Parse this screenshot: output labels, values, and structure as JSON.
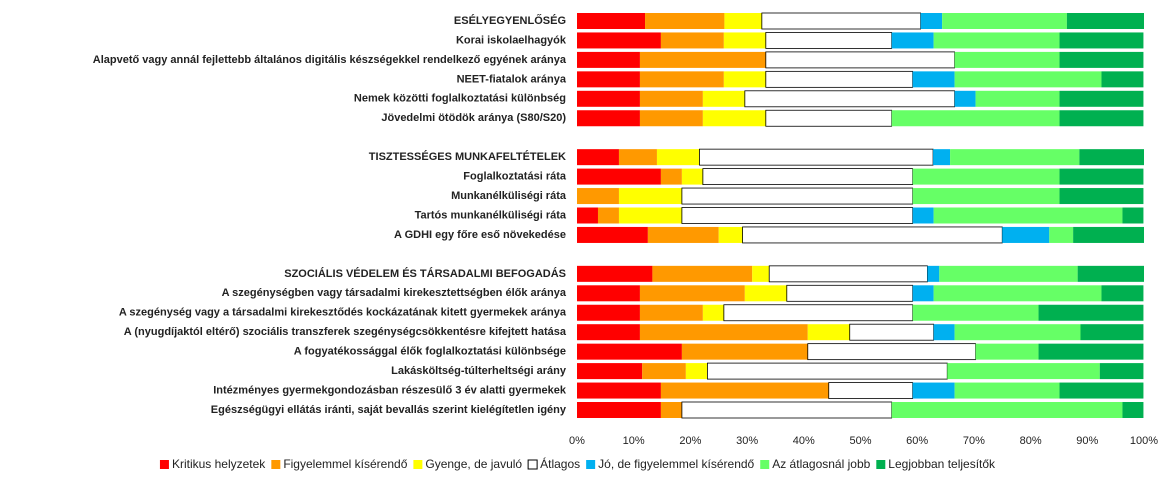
{
  "chart_data": {
    "type": "stacked-bar-horizontal",
    "categories": [
      "ESÉLYEGYENLŐSÉG",
      "Korai iskolaelhagyók",
      "Alapvető vagy annál fejlettebb általános digitális készségekkel rendelkező egyének aránya",
      "NEET-fiatalok aránya",
      "Nemek közötti foglalkoztatási különbség",
      "Jövedelmi ötödök aránya (S80/S20)",
      null,
      "TISZTESSÉGES MUNKAFELTÉTELEK",
      "Foglalkoztatási ráta",
      "Munkanélküliségi ráta",
      "Tartós munkanélküliségi ráta",
      "A GDHI egy főre eső növekedése",
      null,
      "SZOCIÁLIS VÉDELEM ÉS TÁRSADALMI BEFOGADÁS",
      "A szegénységben vagy társadalmi kirekesztettségben élők aránya",
      "A szegénység vagy a társadalmi kirekesztődés kockázatának kitett gyermekek aránya",
      "A (nyugdíjaktól eltérő) szociális transzferek szegénységcsökkentésre kifejtett hatása",
      "A fogyatékossággal élők foglalkoztatási különbsége",
      "Lakásköltség-túlterheltségi arány",
      "Intézményes gyermekgondozásban részesülő 3 év alatti gyermekek",
      "Egészségügyi ellátás iránti, saját bevallás szerint kielégítetlen igény"
    ],
    "series": [
      {
        "name": "Kritikus helyzetek",
        "color": "#ff0000",
        "values": [
          12,
          14.8,
          11.1,
          11.1,
          11.1,
          11.1,
          null,
          7.4,
          14.8,
          0,
          3.7,
          12.5,
          null,
          13.3,
          11.1,
          11.1,
          11.1,
          18.5,
          11.5,
          14.8,
          14.8
        ]
      },
      {
        "name": "Figyelemmel kísérendő",
        "color": "#ff9900",
        "values": [
          14,
          11.1,
          22.2,
          14.8,
          11.1,
          11.1,
          null,
          6.7,
          3.7,
          7.4,
          3.7,
          12.5,
          null,
          17.6,
          18.5,
          11.1,
          29.6,
          22.2,
          7.7,
          29.6,
          3.7
        ]
      },
      {
        "name": "Gyenge, de javuló",
        "color": "#ffff00",
        "values": [
          6.6,
          7.4,
          0,
          7.4,
          7.4,
          11.1,
          null,
          7.5,
          3.7,
          11.1,
          11.1,
          4.2,
          null,
          3,
          7.4,
          3.7,
          7.4,
          0,
          3.8,
          0,
          0
        ]
      },
      {
        "name": "Átlagos",
        "color": "#ffffff",
        "values": [
          28,
          22.2,
          33.3,
          25.9,
          37,
          22.2,
          null,
          41.2,
          37,
          40.7,
          40.7,
          45.8,
          null,
          27.9,
          22.2,
          33.3,
          14.8,
          29.6,
          42.3,
          14.8,
          37
        ]
      },
      {
        "name": "Jó, de figyelemmel kísérendő",
        "color": "#00b0f0",
        "values": [
          3.8,
          7.4,
          0,
          7.4,
          3.7,
          0,
          null,
          3,
          0,
          0,
          3.7,
          8.3,
          null,
          2.1,
          3.7,
          0,
          3.7,
          0,
          0,
          7.4,
          0
        ]
      },
      {
        "name": "Az átlagosnál jobb",
        "color": "#66ff66",
        "values": [
          22,
          22.2,
          18.5,
          25.9,
          14.8,
          29.6,
          null,
          22.8,
          25.9,
          25.9,
          33.3,
          4.2,
          null,
          24.4,
          29.6,
          22.2,
          22.2,
          11.1,
          26.9,
          18.5,
          40.7
        ]
      },
      {
        "name": "Legjobban teljesítők",
        "color": "#00b050",
        "values": [
          13.6,
          14.8,
          14.8,
          7.4,
          14.8,
          14.8,
          null,
          11.4,
          14.8,
          14.8,
          3.7,
          12.5,
          null,
          11.7,
          7.4,
          18.5,
          11.1,
          18.5,
          7.7,
          14.8,
          3.7
        ]
      }
    ],
    "xlim": [
      0,
      100
    ],
    "xticks": [
      {
        "value": 0,
        "label": "0%"
      },
      {
        "value": 10,
        "label": "10%"
      },
      {
        "value": 20,
        "label": "20%"
      },
      {
        "value": 30,
        "label": "30%"
      },
      {
        "value": 40,
        "label": "40%"
      },
      {
        "value": 50,
        "label": "50%"
      },
      {
        "value": 60,
        "label": "60%"
      },
      {
        "value": 70,
        "label": "70%"
      },
      {
        "value": 80,
        "label": "80%"
      },
      {
        "value": 90,
        "label": "90%"
      },
      {
        "value": 100,
        "label": "100%"
      }
    ],
    "legend": "bottom"
  }
}
